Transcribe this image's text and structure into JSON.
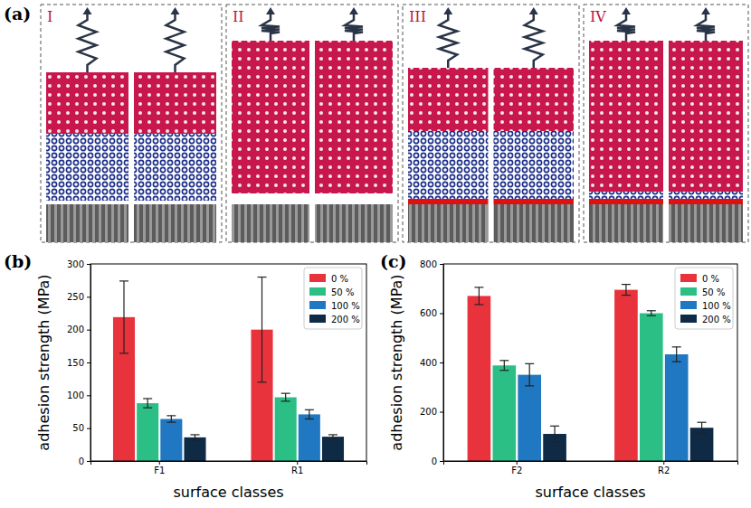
{
  "chart_data": [
    {
      "type": "bar",
      "x_label": "surface classes",
      "y_label": "adhesion strength (MPa)",
      "categories": [
        "F1",
        "R1"
      ],
      "series": [
        {
          "name": "0 %",
          "color": "#e8333c",
          "values": [
            219,
            200
          ],
          "errors": [
            55,
            80
          ]
        },
        {
          "name": "50 %",
          "color": "#2bbf86",
          "values": [
            88,
            97
          ],
          "errors": [
            7,
            6
          ]
        },
        {
          "name": "100 %",
          "color": "#1f78c1",
          "values": [
            64,
            71
          ],
          "errors": [
            5,
            7
          ]
        },
        {
          "name": "200 %",
          "color": "#0e2a45",
          "values": [
            36,
            37
          ],
          "errors": [
            4,
            3
          ]
        }
      ],
      "ylim": [
        0,
        300
      ],
      "yticks": [
        0,
        50,
        100,
        150,
        200,
        250,
        300
      ],
      "legend": "upper right",
      "grid": false
    },
    {
      "type": "bar",
      "x_label": "surface classes",
      "y_label": "adhesion strength (MPa)",
      "categories": [
        "F2",
        "R2"
      ],
      "series": [
        {
          "name": "0 %",
          "color": "#e8333c",
          "values": [
            670,
            695
          ],
          "errors": [
            35,
            22
          ]
        },
        {
          "name": "50 %",
          "color": "#2bbf86",
          "values": [
            388,
            600
          ],
          "errors": [
            20,
            10
          ]
        },
        {
          "name": "100 %",
          "color": "#1f78c1",
          "values": [
            350,
            433
          ],
          "errors": [
            45,
            30
          ]
        },
        {
          "name": "200 %",
          "color": "#0e2a45",
          "values": [
            110,
            135
          ],
          "errors": [
            32,
            22
          ]
        }
      ],
      "ylim": [
        0,
        800
      ],
      "yticks": [
        0,
        200,
        400,
        600,
        800
      ],
      "legend": "upper right",
      "grid": false
    }
  ],
  "figure": {
    "panel_letters": [
      "(a)",
      "(b)",
      "(c)"
    ],
    "schematic_labels": [
      "I",
      "II",
      "III",
      "IV"
    ]
  }
}
